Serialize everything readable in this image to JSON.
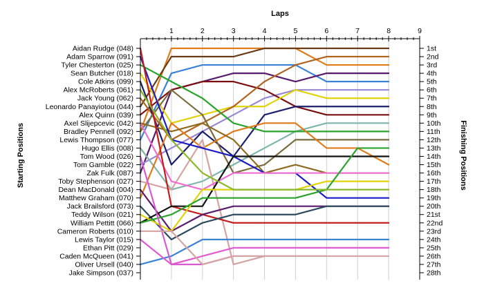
{
  "chart_data": {
    "type": "line",
    "title": "Laps",
    "ylabel_left": "Starting Positions",
    "ylabel_right": "Finishing Positions",
    "x_ticks": [
      "1",
      "2",
      "3",
      "4",
      "5",
      "6",
      "7",
      "8",
      "9"
    ],
    "xlim": [
      0,
      9
    ],
    "ylim": [
      1,
      28
    ],
    "y_inverted": true,
    "grid": "vertical",
    "start_labels": [
      "Aidan Rudge (048)",
      "Adam Sparrow (091)",
      "Tyler Chesterton (025)",
      "Sean Butcher (018)",
      "Cole Atkins (099)",
      "Alex McRoberts (061)",
      "Jack Young (062)",
      "Leonardo Panayiotou (044)",
      "Alex Quinn (039)",
      "Axel Slijepcevic (042)",
      "Bradley Pennell (092)",
      "Lewis Thompson (077)",
      "Hugo Ellis (008)",
      "Tom Wood (026)",
      "Tom Gamble (022)",
      "Zak Fulk (087)",
      "Toby Stephenson (027)",
      "Dean MacDonald (004)",
      "Matthew Graham (070)",
      "Jack Brailsford (073)",
      "Teddy Wilson (021)",
      "William Pettitt (066)",
      "Cameron Roberts (010)",
      "Lewis Taylor (015)",
      "Ethan Pitt (029)",
      "Caden McQueen (041)",
      "Oliver Ursell (040)",
      "Jake Simpson (037)"
    ],
    "finish_labels": [
      "1st",
      "2nd",
      "3rd",
      "4th",
      "5th",
      "6th",
      "7th",
      "8th",
      "9th",
      "10th",
      "11th",
      "12th",
      "13th",
      "14th",
      "15th",
      "16th",
      "17th",
      "18th",
      "19th",
      "20th",
      "21st",
      "22nd",
      "23rd",
      "24th",
      "25th",
      "26th",
      "27th",
      "28th"
    ],
    "series": [
      {
        "color": "#e07b1a",
        "values": [
          11,
          1,
          1,
          1,
          1,
          1,
          3,
          3,
          3
        ]
      },
      {
        "color": "#6b3a16",
        "values": [
          8,
          2,
          2,
          2,
          1,
          1,
          1,
          1,
          1
        ]
      },
      {
        "color": "#3a82d6",
        "values": [
          12,
          4,
          3,
          3,
          3,
          3,
          5,
          5,
          5
        ]
      },
      {
        "color": "#5a1a6b",
        "values": [
          16,
          6,
          5,
          4,
          4,
          5,
          4,
          4,
          4
        ]
      },
      {
        "color": "#9a86d6",
        "values": [
          15,
          13,
          11,
          9,
          7,
          6,
          6,
          6,
          6
        ]
      },
      {
        "color": "#7b0e0e",
        "values": [
          9,
          6,
          5,
          5,
          6,
          8,
          9,
          9,
          9
        ]
      },
      {
        "color": "#e0d30c",
        "values": [
          4,
          10,
          9,
          8,
          8,
          6,
          7,
          7,
          7
        ]
      },
      {
        "color": "#b0641f",
        "values": [
          7,
          12,
          10,
          8,
          5,
          3,
          2,
          2,
          2
        ]
      },
      {
        "color": "#1b1f6b",
        "values": [
          5,
          15,
          11,
          14,
          9,
          8,
          8,
          8,
          8
        ]
      },
      {
        "color": "#7fb6ac",
        "values": [
          13,
          18,
          17,
          15,
          13,
          11,
          10,
          10,
          10
        ]
      },
      {
        "color": "#2aa32a",
        "values": [
          3,
          5,
          7,
          10,
          11,
          11,
          11,
          11,
          11
        ]
      },
      {
        "color": "#7a6c3c",
        "values": [
          11,
          6,
          9,
          16,
          15,
          12,
          12,
          12,
          12
        ]
      },
      {
        "color": "#e07b1a",
        "values": [
          19,
          10,
          13,
          11,
          10,
          10,
          13,
          13,
          15
        ]
      },
      {
        "color": "#8d6a1f",
        "values": [
          10,
          11,
          10,
          12,
          16,
          15,
          16,
          16,
          16
        ]
      },
      {
        "color": "#d6a3a3",
        "values": [
          17,
          18,
          12,
          27,
          26,
          26,
          26,
          26,
          26
        ]
      },
      {
        "color": "#1c1cc4",
        "values": [
          2,
          12,
          13,
          14,
          16,
          16,
          19,
          19,
          19
        ]
      },
      {
        "color": "#f06cd3",
        "values": [
          10,
          17,
          18,
          16,
          16,
          16,
          16,
          16,
          16
        ]
      },
      {
        "color": "#c41c1c",
        "values": [
          1,
          20,
          21,
          22,
          22,
          22,
          22,
          22,
          22
        ]
      },
      {
        "color": "#5a1a6b",
        "values": [
          18,
          23,
          21,
          20,
          20,
          20,
          20,
          20,
          20
        ]
      },
      {
        "color": "#2c4a5e",
        "values": [
          20,
          24,
          22,
          21,
          21,
          21,
          20,
          20,
          20
        ]
      },
      {
        "color": "#111111",
        "values": [
          22,
          20,
          20,
          14,
          14,
          14,
          14,
          14,
          14
        ]
      },
      {
        "color": "#e0d30c",
        "values": [
          21,
          23,
          18,
          18,
          18,
          18,
          17,
          17,
          17
        ]
      },
      {
        "color": "#2aa32a",
        "values": [
          22,
          21,
          19,
          19,
          19,
          19,
          18,
          13,
          13
        ]
      },
      {
        "color": "#3a82d6",
        "values": [
          27,
          26,
          24,
          24,
          24,
          24,
          24,
          24,
          24
        ]
      },
      {
        "color": "#e05ad1",
        "values": [
          24,
          27,
          26,
          25,
          25,
          25,
          25,
          25,
          25
        ]
      },
      {
        "color": "#d85ad1",
        "values": [
          14,
          27,
          27,
          26,
          26,
          26,
          26
        ]
      },
      {
        "color": "#d6a3a3",
        "values": [
          23,
          23,
          27,
          26,
          26,
          26,
          26
        ]
      },
      {
        "color": "#8ab82a",
        "values": [
          6,
          12,
          16,
          18,
          18,
          18,
          18,
          18,
          18
        ]
      }
    ]
  }
}
